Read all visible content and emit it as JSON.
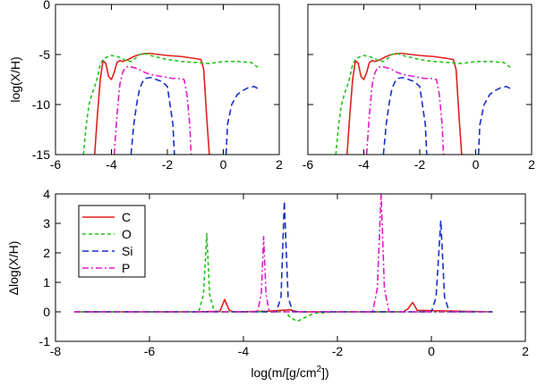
{
  "chart_data": [
    {
      "panel": "top-left",
      "type": "line",
      "xlabel": "",
      "ylabel": "log(X/H)",
      "xlim": [
        -6,
        2
      ],
      "ylim": [
        -15,
        0
      ],
      "xticks": [
        -6,
        -4,
        -2,
        0,
        2
      ],
      "yticks": [
        0,
        -5,
        -10,
        -15
      ],
      "xtick_labels": [
        "-6",
        "-4",
        "-2",
        "0",
        "2"
      ],
      "ytick_labels": [
        "0",
        "-5",
        "-10",
        "-15"
      ],
      "series": [
        {
          "name": "C",
          "color": "#e0201b",
          "dash": "solid",
          "x": [
            -4.6,
            -4.5,
            -4.4,
            -4.3,
            -4.2,
            -4.1,
            -4.0,
            -3.9,
            -3.8,
            -3.7,
            -3.6,
            -3.4,
            -3.2,
            -3.0,
            -2.8,
            -2.6,
            -2.3,
            -2.0,
            -1.5,
            -1.0,
            -0.8,
            -0.7,
            -0.6,
            -0.5,
            -0.45
          ],
          "y": [
            -15,
            -11,
            -7.5,
            -5.6,
            -5.9,
            -7.2,
            -7.5,
            -6.8,
            -5.8,
            -5.6,
            -5.7,
            -5.5,
            -5.2,
            -5.0,
            -4.9,
            -4.9,
            -5.0,
            -5.1,
            -5.2,
            -5.4,
            -5.5,
            -6.5,
            -11,
            -15,
            -15
          ]
        },
        {
          "name": "O",
          "color": "#22c21c",
          "dash": "4,3",
          "x": [
            -5.0,
            -4.9,
            -4.8,
            -4.7,
            -4.6,
            -4.5,
            -4.4,
            -4.3,
            -4.2,
            -4.1,
            -4.0,
            -3.8,
            -3.6,
            -3.5,
            -3.3,
            -3.1,
            -3.0,
            -2.8,
            -2.6,
            -2.3,
            -2.0,
            -1.5,
            -1.0,
            -0.5,
            0.0,
            0.5,
            1.0,
            1.3
          ],
          "y": [
            -15,
            -12,
            -10,
            -9.0,
            -8.2,
            -7.3,
            -6.0,
            -5.5,
            -5.3,
            -5.2,
            -5.1,
            -5.2,
            -5.4,
            -5.6,
            -5.7,
            -5.3,
            -5.0,
            -4.9,
            -5.1,
            -5.3,
            -5.5,
            -5.7,
            -5.8,
            -5.9,
            -5.7,
            -5.7,
            -5.8,
            -6.4
          ]
        },
        {
          "name": "Si",
          "color": "#1830c8",
          "dash": "7,4",
          "x": [
            -3.3,
            -3.2,
            -3.1,
            -3.0,
            -2.9,
            -2.8,
            -2.6,
            -2.4,
            -2.2,
            -2.0,
            -1.8,
            -1.75,
            -1.7,
            null,
            0.1,
            0.15,
            0.3,
            0.5,
            0.7,
            0.9,
            1.1,
            1.3
          ],
          "y": [
            -15,
            -12,
            -10,
            -8.5,
            -7.8,
            -7.4,
            -7.3,
            -7.5,
            -7.7,
            -8.2,
            -12,
            -15,
            -15,
            null,
            -15,
            -12,
            -10,
            -9.0,
            -8.6,
            -8.3,
            -8.2,
            -8.5
          ]
        },
        {
          "name": "P",
          "color": "#e01cc8",
          "dash": "7,3,2,3",
          "x": [
            -3.9,
            -3.8,
            -3.7,
            -3.6,
            -3.5,
            -3.4,
            -3.2,
            -3.0,
            -2.8,
            -2.6,
            -2.4,
            -2.2,
            -2.0,
            -1.8,
            -1.6,
            -1.4,
            -1.3,
            -1.2,
            -1.15
          ],
          "y": [
            -15,
            -11,
            -8.0,
            -6.8,
            -6.3,
            -6.2,
            -6.3,
            -6.5,
            -6.8,
            -7.0,
            -7.1,
            -7.2,
            -7.3,
            -7.4,
            -7.4,
            -7.5,
            -9.0,
            -12,
            -15
          ]
        }
      ]
    },
    {
      "panel": "top-right",
      "type": "line",
      "xlabel": "",
      "ylabel": "",
      "xlim": [
        -6,
        2
      ],
      "ylim": [
        -15,
        0
      ],
      "xticks": [
        -6,
        -4,
        -2,
        0,
        2
      ],
      "yticks": [
        0,
        -5,
        -10,
        -15
      ],
      "xtick_labels": [
        "-6",
        "-4",
        "-2",
        "0",
        "2"
      ],
      "ytick_labels": [],
      "same_series_as": "top-left"
    },
    {
      "panel": "bottom",
      "type": "line",
      "xlabel": "log(m/[g/cm2])",
      "xlabel_parts": {
        "pre": "log(m/[g/cm",
        "sup": "2",
        "post": "])"
      },
      "ylabel": "Δlog(X/H)",
      "xlim": [
        -8,
        2
      ],
      "ylim": [
        -1,
        4
      ],
      "xticks": [
        -8,
        -6,
        -4,
        -2,
        0,
        2
      ],
      "yticks": [
        -1,
        0,
        1,
        2,
        3,
        4
      ],
      "xtick_labels": [
        "-8",
        "-6",
        "-4",
        "-2",
        "0",
        "2"
      ],
      "ytick_labels": [
        "-1",
        "0",
        "1",
        "2",
        "3",
        "4"
      ],
      "legend_position": "top-left",
      "series": [
        {
          "name": "C",
          "color": "#e0201b",
          "dash": "solid",
          "x": [
            -7.6,
            -5.0,
            -4.5,
            -4.4,
            -4.3,
            -4.2,
            -3.5,
            -3.0,
            -2.9,
            -2.8,
            -0.6,
            -0.5,
            -0.4,
            -0.3,
            1.3
          ],
          "y": [
            0,
            0,
            0.02,
            0.42,
            0.05,
            0,
            0.02,
            0.07,
            0.02,
            0,
            0,
            0.1,
            0.32,
            0.05,
            0
          ]
        },
        {
          "name": "O",
          "color": "#22c21c",
          "dash": "4,3",
          "x": [
            -7.6,
            -4.95,
            -4.85,
            -4.78,
            -4.72,
            -4.62,
            -4.4,
            -3.5,
            -3.1,
            -3.0,
            -2.85,
            -2.7,
            -2.5,
            -2.0,
            1.3
          ],
          "y": [
            0,
            0,
            0.6,
            2.65,
            0.6,
            0,
            0,
            0,
            0,
            -0.2,
            -0.32,
            -0.2,
            -0.05,
            0,
            0
          ]
        },
        {
          "name": "Si",
          "color": "#1830c8",
          "dash": "7,4",
          "x": [
            -7.6,
            -3.3,
            -3.2,
            -3.13,
            -3.05,
            -2.95,
            0.0,
            0.1,
            0.2,
            0.28,
            0.38,
            1.3
          ],
          "y": [
            0,
            0,
            0.5,
            3.75,
            0.5,
            0,
            0,
            0.5,
            3.1,
            0.5,
            0,
            0
          ]
        },
        {
          "name": "P",
          "color": "#e01cc8",
          "dash": "7,3,2,3",
          "x": [
            -7.6,
            -3.7,
            -3.62,
            -3.57,
            -3.52,
            -3.45,
            -1.25,
            -1.15,
            -1.07,
            -1.0,
            -0.9,
            1.3
          ],
          "y": [
            0,
            0,
            0.6,
            2.55,
            0.6,
            0,
            0,
            0.8,
            4.0,
            0.8,
            0,
            0
          ]
        }
      ]
    }
  ]
}
